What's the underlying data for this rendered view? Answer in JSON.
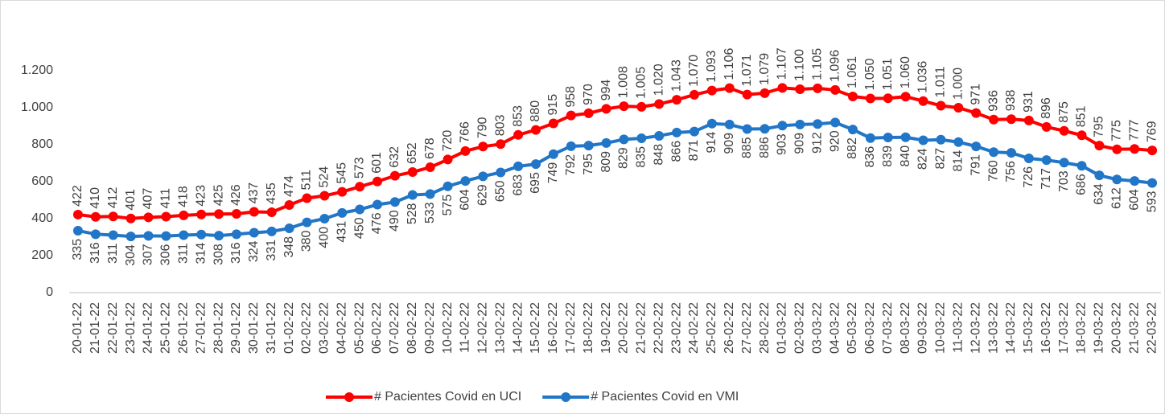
{
  "chart_data": {
    "type": "line",
    "categories": [
      "20-01-22",
      "21-01-22",
      "22-01-22",
      "23-01-22",
      "24-01-22",
      "25-01-22",
      "26-01-22",
      "27-01-22",
      "28-01-22",
      "29-01-22",
      "30-01-22",
      "31-01-22",
      "01-02-22",
      "02-02-22",
      "03-02-22",
      "04-02-22",
      "05-02-22",
      "06-02-22",
      "07-02-22",
      "08-02-22",
      "09-02-22",
      "10-02-22",
      "11-02-22",
      "12-02-22",
      "13-02-22",
      "14-02-22",
      "15-02-22",
      "16-02-22",
      "17-02-22",
      "18-02-22",
      "19-02-22",
      "20-02-22",
      "21-02-22",
      "22-02-22",
      "23-02-22",
      "24-02-22",
      "25-02-22",
      "26-02-22",
      "27-02-22",
      "28-02-22",
      "01-03-22",
      "02-03-22",
      "03-03-22",
      "04-03-22",
      "05-03-22",
      "06-03-22",
      "07-03-22",
      "08-03-22",
      "09-03-22",
      "10-03-22",
      "11-03-22",
      "12-03-22",
      "13-03-22",
      "14-03-22",
      "15-03-22",
      "16-03-22",
      "17-03-22",
      "18-03-22",
      "19-03-22",
      "20-03-22",
      "21-03-22",
      "22-03-22"
    ],
    "series": [
      {
        "name": "# Pacientes Covid en UCI",
        "color": "#ff0000",
        "label_side": "above",
        "values": [
          422,
          410,
          412,
          401,
          407,
          411,
          418,
          423,
          425,
          426,
          437,
          435,
          474,
          511,
          524,
          545,
          573,
          601,
          632,
          652,
          678,
          720,
          766,
          790,
          803,
          853,
          880,
          915,
          958,
          970,
          994,
          1008,
          1005,
          1020,
          1043,
          1070,
          1093,
          1106,
          1071,
          1079,
          1107,
          1100,
          1105,
          1096,
          1061,
          1050,
          1051,
          1060,
          1036,
          1011,
          1000,
          971,
          936,
          938,
          931,
          896,
          875,
          851,
          795,
          775,
          777,
          769
        ],
        "value_labels": [
          "422",
          "410",
          "412",
          "401",
          "407",
          "411",
          "418",
          "423",
          "425",
          "426",
          "437",
          "435",
          "474",
          "511",
          "524",
          "545",
          "573",
          "601",
          "632",
          "652",
          "678",
          "720",
          "766",
          "790",
          "803",
          "853",
          "880",
          "915",
          "958",
          "970",
          "994",
          "1.008",
          "1.005",
          "1.020",
          "1.043",
          "1.070",
          "1.093",
          "1.106",
          "1.071",
          "1.079",
          "1.107",
          "1.100",
          "1.105",
          "1.096",
          "1.061",
          "1.050",
          "1.051",
          "1.060",
          "1.036",
          "1.011",
          "1.000",
          "971",
          "936",
          "938",
          "931",
          "896",
          "875",
          "851",
          "795",
          "775",
          "777",
          "769"
        ]
      },
      {
        "name": "# Pacientes Covid en VMI",
        "color": "#2176c7",
        "label_side": "below",
        "values": [
          335,
          316,
          311,
          304,
          307,
          306,
          311,
          314,
          308,
          316,
          324,
          331,
          348,
          380,
          400,
          431,
          450,
          476,
          490,
          528,
          533,
          575,
          604,
          629,
          650,
          683,
          695,
          749,
          792,
          795,
          809,
          829,
          835,
          848,
          866,
          871,
          914,
          909,
          885,
          886,
          903,
          909,
          912,
          920,
          882,
          836,
          839,
          840,
          824,
          827,
          814,
          791,
          760,
          756,
          726,
          717,
          703,
          686,
          634,
          612,
          604,
          593
        ]
      }
    ],
    "ylim": [
      0,
      1200
    ],
    "yticks": [
      0,
      200,
      400,
      600,
      800,
      {
        "value": 1000,
        "label": "1.000"
      },
      {
        "value": 1200,
        "label": "1.200"
      }
    ],
    "grid": false,
    "legend": "bottom"
  }
}
